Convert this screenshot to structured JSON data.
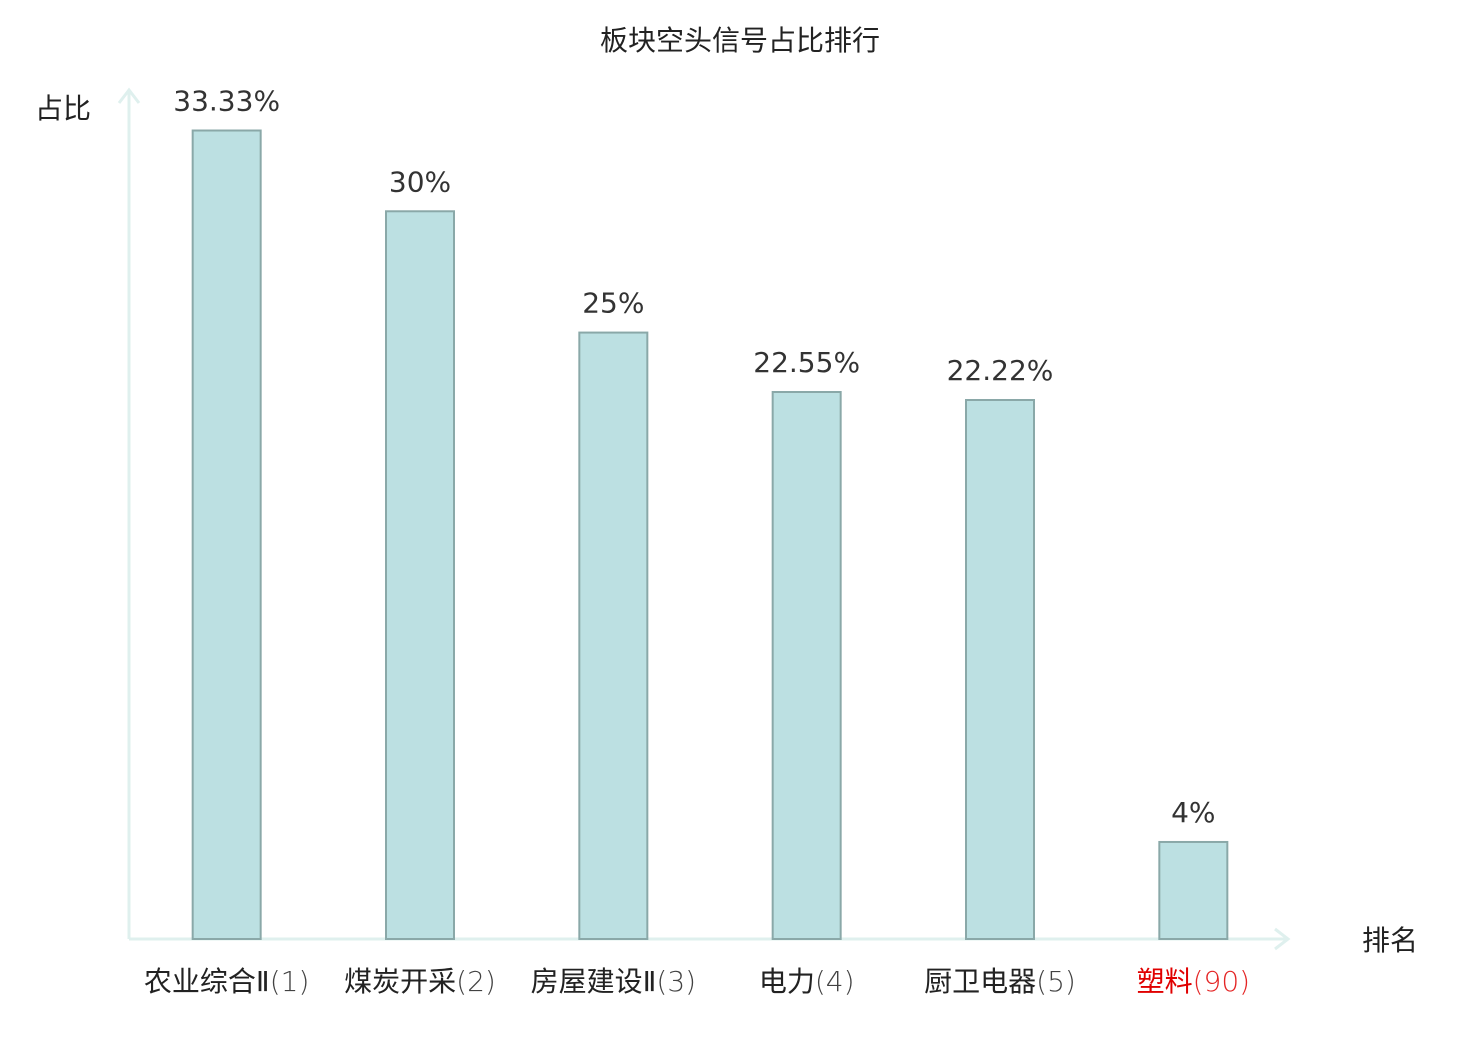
{
  "chart_data": {
    "type": "bar",
    "title": "板块空头信号占比排行",
    "y_label": "占比",
    "x_label": "排名",
    "categories": [
      "农业综合Ⅱ",
      "煤炭开采",
      "房屋建设Ⅱ",
      "电力",
      "厨卫电器",
      "塑料"
    ],
    "ranks": [
      "(1)",
      "(2)",
      "(3)",
      "(4)",
      "(5)",
      "(90)"
    ],
    "label_colors": [
      "#222222",
      "#222222",
      "#222222",
      "#222222",
      "#222222",
      "#e00000"
    ],
    "values": [
      33.33,
      30,
      25,
      22.55,
      22.22,
      4
    ],
    "value_labels": [
      "33.33%",
      "30%",
      "25%",
      "22.55%",
      "22.22%",
      "4%"
    ],
    "color": "#bce0e2",
    "edge_color": "#8aa8a8",
    "ylim": [
      0,
      35
    ]
  }
}
